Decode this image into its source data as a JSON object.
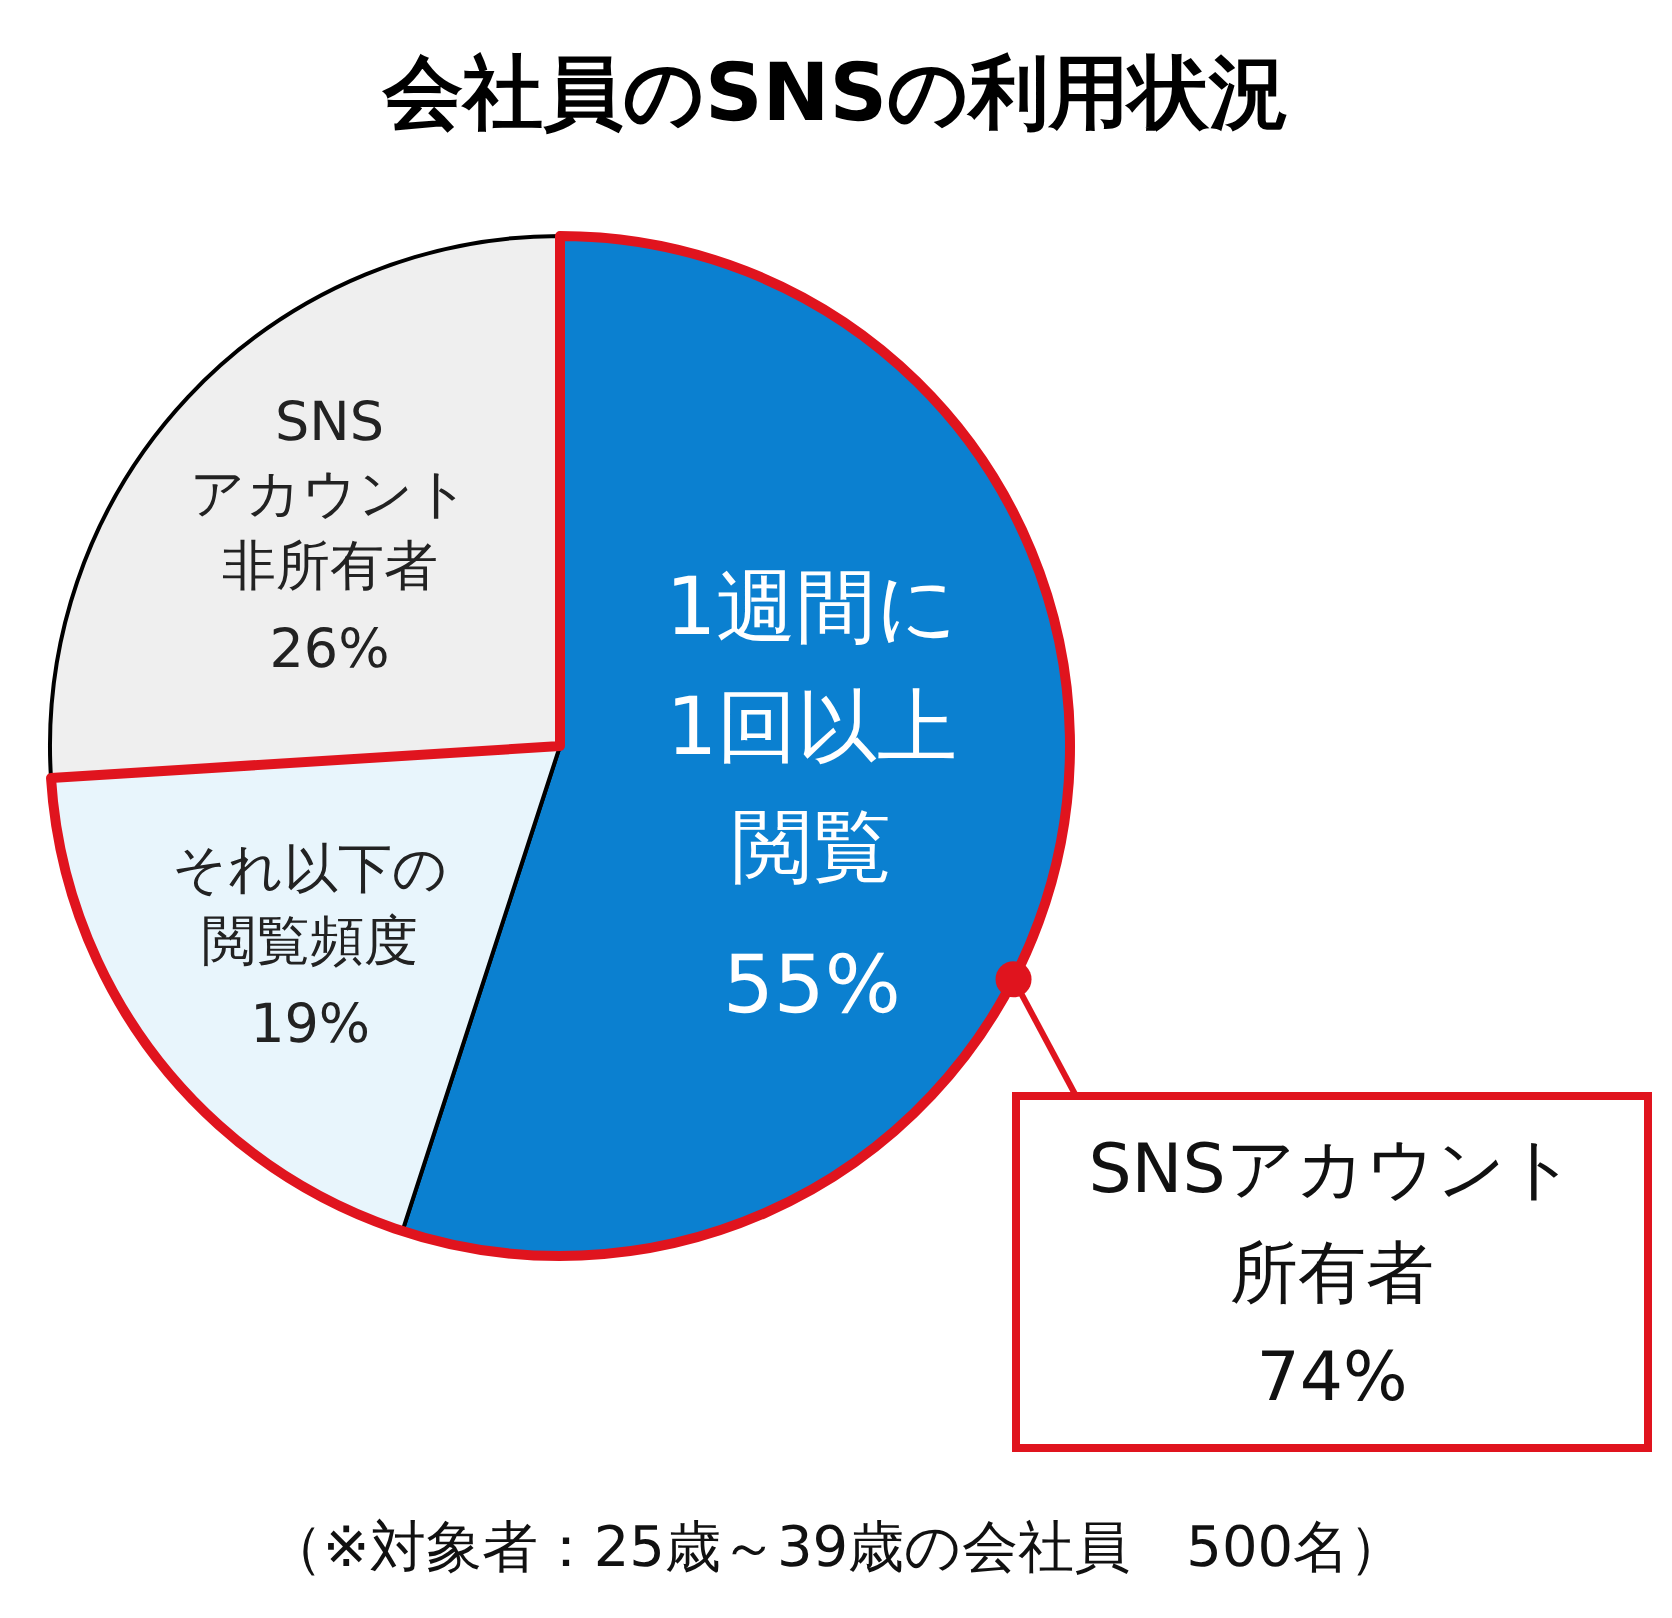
{
  "chart_data": {
    "type": "pie",
    "title": "会社員のSNSの利用状況",
    "categories": [
      "1週間に1回以上閲覧",
      "それ以下の閲覧頻度",
      "SNSアカウント非所有者"
    ],
    "values": [
      55,
      19,
      26
    ],
    "value_labels": [
      "55%",
      "19%",
      "26%"
    ],
    "colors": [
      "#0b80d0",
      "#e8f5fc",
      "#efefef"
    ],
    "annotations": [
      "SNSアカウント所有者",
      "74%",
      "（※対象者：25歳～39歳の会社員　500名）"
    ]
  }
}
